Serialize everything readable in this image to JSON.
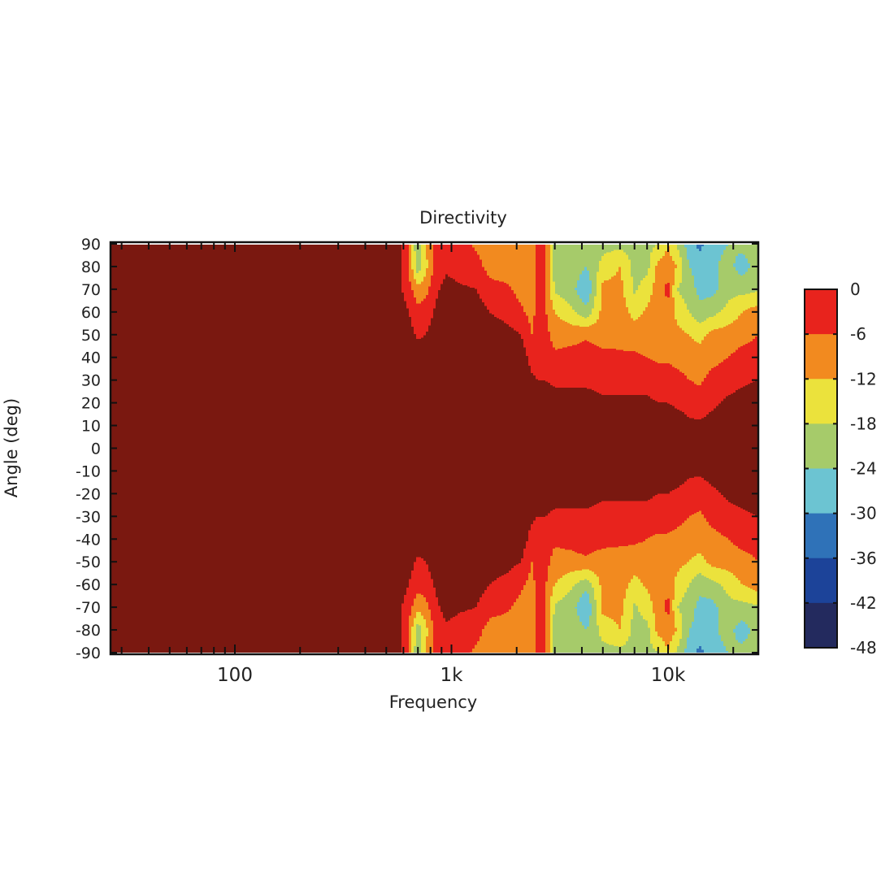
{
  "chart_data": {
    "type": "heatmap",
    "subtype": "filled-contour",
    "title": "Directivity",
    "xlabel": "Frequency",
    "ylabel": "Angle (deg)",
    "x_scale": "log",
    "xlim": [
      27,
      26000
    ],
    "ylim": [
      -90,
      90
    ],
    "x_tick_labels": [
      {
        "value": 100,
        "label": "100"
      },
      {
        "value": 1000,
        "label": "1k"
      },
      {
        "value": 10000,
        "label": "10k"
      }
    ],
    "y_ticks": [
      90,
      80,
      70,
      60,
      50,
      40,
      30,
      20,
      10,
      0,
      -10,
      -20,
      -30,
      -40,
      -50,
      -60,
      -70,
      -80,
      -90
    ],
    "colorbar": {
      "levels": [
        0,
        -6,
        -12,
        -18,
        -24,
        -30,
        -36,
        -42,
        -48
      ],
      "labels": [
        "0",
        "-6",
        "-12",
        "-18",
        "-24",
        "-30",
        "-36",
        "-42",
        "-48"
      ],
      "band_colors": [
        "#e8231d",
        "#f28a1f",
        "#ebe23c",
        "#a6cb6a",
        "#6cc4d2",
        "#2f72b8",
        "#1c4399",
        "#232a5e"
      ],
      "above_color": "#7a1810",
      "placement": "right"
    },
    "angles": [
      -90,
      -80,
      -70,
      -60,
      -50,
      -40,
      -30,
      -20,
      -10,
      0,
      10,
      20,
      30,
      40,
      50,
      60,
      70,
      80,
      90
    ],
    "frequencies": [
      27,
      100,
      300,
      550,
      620,
      700,
      760,
      850,
      950,
      1100,
      1300,
      1500,
      1800,
      2100,
      2350,
      2500,
      2700,
      3000,
      3600,
      4200,
      5000,
      6000,
      7000,
      8000,
      9000,
      10000,
      11000,
      12500,
      14000,
      16000,
      19000,
      22000,
      26000
    ],
    "values_db": [
      [
        3,
        3,
        3,
        3,
        3,
        3,
        3,
        3,
        3,
        3,
        3,
        3,
        3,
        3,
        3,
        3,
        3,
        3,
        3
      ],
      [
        3,
        3,
        3,
        3,
        3,
        3,
        3,
        3,
        3,
        3,
        3,
        3,
        3,
        3,
        3,
        3,
        3,
        3,
        3
      ],
      [
        3,
        3,
        3,
        3,
        3,
        3,
        3,
        3,
        3,
        3,
        3,
        3,
        3,
        3,
        3,
        3,
        3,
        3,
        3
      ],
      [
        3,
        3,
        3,
        3,
        3,
        3,
        3,
        3,
        3,
        3,
        3,
        3,
        3,
        3,
        3,
        3,
        3,
        3,
        3
      ],
      [
        -3,
        -3,
        -2,
        1,
        3,
        3,
        3,
        3,
        3,
        3,
        3,
        3,
        3,
        3,
        3,
        1,
        -2,
        -3,
        -3
      ],
      [
        -24,
        -22,
        -10,
        -4,
        -1,
        3,
        3,
        3,
        3,
        3,
        3,
        3,
        3,
        3,
        -1,
        -4,
        -10,
        -22,
        -24
      ],
      [
        -12,
        -14,
        -8,
        -3,
        0,
        3,
        3,
        3,
        3,
        3,
        3,
        3,
        3,
        3,
        0,
        -3,
        -8,
        -14,
        -12
      ],
      [
        -3,
        -3,
        -1,
        1,
        3,
        3,
        3,
        3,
        3,
        3,
        3,
        3,
        3,
        3,
        3,
        1,
        -1,
        -3,
        -3
      ],
      [
        -3,
        -1,
        2,
        3,
        3,
        3,
        3,
        3,
        3,
        3,
        3,
        3,
        3,
        3,
        3,
        3,
        2,
        -1,
        -3
      ],
      [
        -4,
        -3,
        1,
        3,
        3,
        3,
        3,
        3,
        3,
        3,
        3,
        3,
        3,
        3,
        3,
        3,
        1,
        -3,
        -4
      ],
      [
        -7,
        -4,
        0,
        3,
        3,
        3,
        3,
        3,
        3,
        3,
        3,
        3,
        3,
        3,
        3,
        3,
        0,
        -4,
        -7
      ],
      [
        -9,
        -8,
        -4,
        0,
        3,
        3,
        3,
        3,
        3,
        3,
        3,
        3,
        3,
        3,
        3,
        0,
        -4,
        -8,
        -9
      ],
      [
        -9,
        -9,
        -5,
        -2,
        2,
        3,
        3,
        3,
        3,
        3,
        3,
        3,
        3,
        3,
        2,
        -2,
        -5,
        -9,
        -9
      ],
      [
        -9,
        -9,
        -8,
        -5,
        0,
        3,
        3,
        3,
        3,
        3,
        3,
        3,
        3,
        3,
        0,
        -5,
        -8,
        -9,
        -9
      ],
      [
        -9,
        -9,
        -9,
        -8,
        -6,
        -2,
        1,
        3,
        3,
        3,
        3,
        3,
        1,
        -2,
        -6,
        -8,
        -9,
        -9,
        -9
      ],
      [
        -4,
        -4,
        -4,
        -4,
        -3,
        -3,
        0,
        3,
        3,
        3,
        3,
        3,
        0,
        -3,
        -3,
        -4,
        -4,
        -4,
        -4
      ],
      [
        -6,
        -6,
        -5,
        -5,
        -4,
        -3,
        0,
        3,
        3,
        3,
        3,
        3,
        0,
        -3,
        -4,
        -5,
        -5,
        -6,
        -6
      ],
      [
        -20,
        -20,
        -19,
        -12,
        -8,
        -5,
        -1,
        2,
        3,
        3,
        3,
        2,
        -1,
        -5,
        -8,
        -12,
        -19,
        -20,
        -20
      ],
      [
        -20,
        -20,
        -22,
        -17,
        -8,
        -4,
        -1,
        2,
        3,
        3,
        3,
        2,
        -1,
        -4,
        -8,
        -17,
        -22,
        -20,
        -20
      ],
      [
        -20,
        -24,
        -30,
        -22,
        -7,
        -3,
        -1,
        2,
        3,
        3,
        3,
        2,
        -1,
        -3,
        -7,
        -22,
        -30,
        -24,
        -20
      ],
      [
        -20,
        -16,
        -10,
        -10,
        -9,
        -4,
        -2,
        1,
        3,
        3,
        3,
        1,
        -2,
        -4,
        -9,
        -10,
        -10,
        -16,
        -20
      ],
      [
        -20,
        -12,
        -10,
        -9,
        -8,
        -5,
        -2,
        1,
        3,
        3,
        3,
        1,
        -2,
        -5,
        -8,
        -9,
        -10,
        -12,
        -20
      ],
      [
        -20,
        -20,
        -19,
        -14,
        -9,
        -5,
        -2,
        1,
        3,
        3,
        3,
        1,
        -2,
        -5,
        -9,
        -14,
        -19,
        -20,
        -20
      ],
      [
        -20,
        -20,
        -15,
        -11,
        -9,
        -6,
        -2,
        1,
        3,
        3,
        3,
        1,
        -2,
        -6,
        -9,
        -11,
        -15,
        -20,
        -20
      ],
      [
        -18,
        -10,
        -9,
        -9,
        -9,
        -7,
        -3,
        0,
        3,
        3,
        3,
        0,
        -3,
        -7,
        -9,
        -9,
        -9,
        -10,
        -18
      ],
      [
        -12,
        -9,
        -4,
        -8,
        -9,
        -7,
        -3,
        0,
        3,
        3,
        3,
        0,
        -3,
        -7,
        -9,
        -8,
        -4,
        -9,
        -12
      ],
      [
        -19,
        -12,
        -18,
        -14,
        -10,
        -8,
        -4,
        -1,
        3,
        3,
        3,
        -1,
        -4,
        -8,
        -10,
        -14,
        -18,
        -12,
        -19
      ],
      [
        -27,
        -24,
        -21,
        -18,
        -12,
        -9,
        -6,
        -2,
        1,
        3,
        1,
        -2,
        -6,
        -9,
        -12,
        -18,
        -21,
        -24,
        -27
      ],
      [
        -32,
        -26,
        -26,
        -22,
        -14,
        -9,
        -7,
        -3,
        1,
        3,
        1,
        -3,
        -7,
        -9,
        -14,
        -22,
        -26,
        -26,
        -32
      ],
      [
        -26,
        -25,
        -26,
        -20,
        -10,
        -8,
        -4,
        -1,
        2,
        3,
        2,
        -1,
        -4,
        -8,
        -10,
        -20,
        -26,
        -25,
        -26
      ],
      [
        -24,
        -22,
        -20,
        -16,
        -9,
        -6,
        -2,
        1,
        3,
        3,
        3,
        1,
        -2,
        -6,
        -9,
        -16,
        -20,
        -22,
        -24
      ],
      [
        -22,
        -27,
        -20,
        -12,
        -8,
        -4,
        -1,
        2,
        3,
        3,
        3,
        2,
        -1,
        -4,
        -8,
        -12,
        -20,
        -27,
        -22
      ],
      [
        -21,
        -21,
        -19,
        -9,
        -6,
        -4,
        0,
        3,
        3,
        3,
        3,
        3,
        0,
        -4,
        -6,
        -9,
        -19,
        -21,
        -21
      ]
    ]
  }
}
